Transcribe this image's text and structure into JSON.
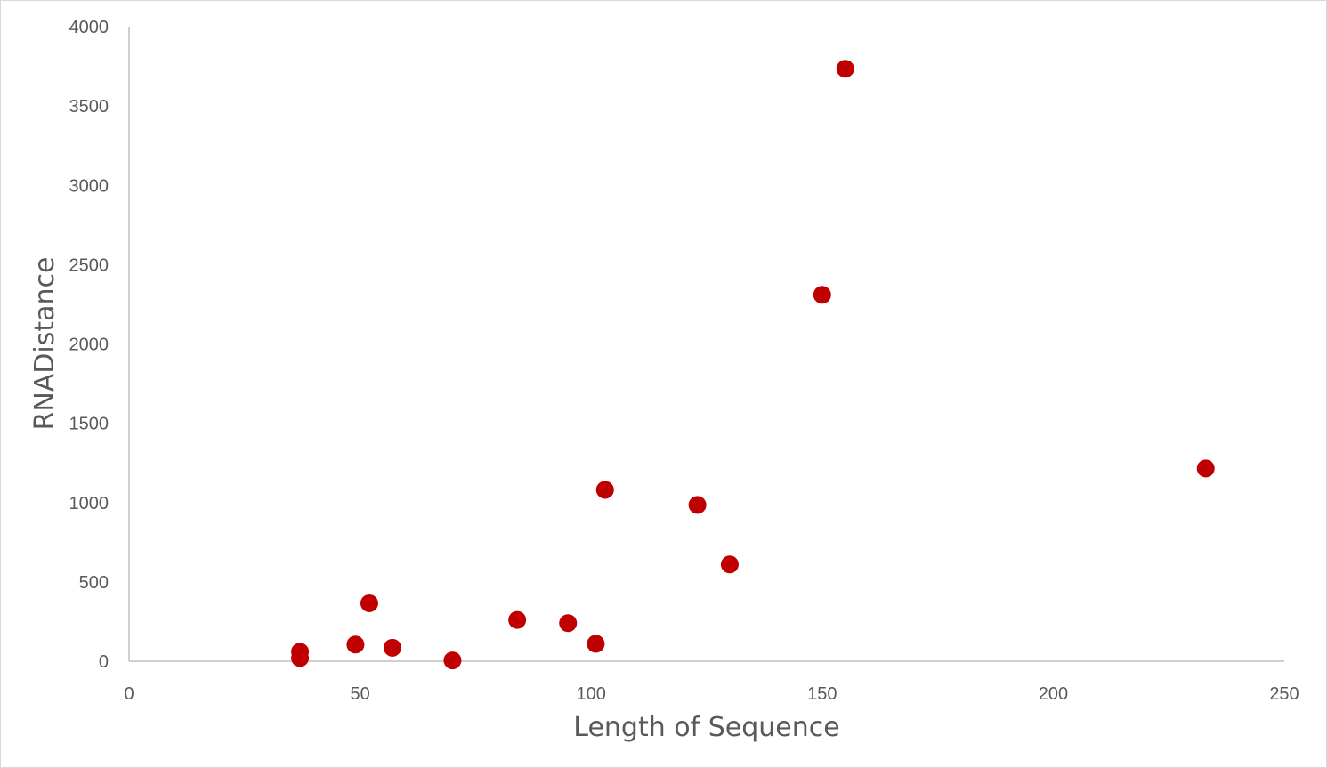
{
  "chart_data": {
    "type": "scatter",
    "title": "",
    "xlabel": "Length of Sequence",
    "ylabel": "RNADistance",
    "xlim": [
      0,
      250
    ],
    "ylim": [
      0,
      4000
    ],
    "xticks": [
      "0",
      "50",
      "100",
      "150",
      "200",
      "250"
    ],
    "yticks": [
      "0",
      "500",
      "1000",
      "1500",
      "2000",
      "2500",
      "3000",
      "3500",
      "4000"
    ],
    "grid": false,
    "legend": "none",
    "marker_color": "#C00000",
    "points": [
      {
        "x": 37,
        "y": 60
      },
      {
        "x": 37,
        "y": 20
      },
      {
        "x": 49,
        "y": 105
      },
      {
        "x": 52,
        "y": 365
      },
      {
        "x": 57,
        "y": 85
      },
      {
        "x": 70,
        "y": 5
      },
      {
        "x": 84,
        "y": 260
      },
      {
        "x": 95,
        "y": 240
      },
      {
        "x": 101,
        "y": 110
      },
      {
        "x": 103,
        "y": 1080
      },
      {
        "x": 123,
        "y": 985
      },
      {
        "x": 130,
        "y": 610
      },
      {
        "x": 150,
        "y": 2310
      },
      {
        "x": 155,
        "y": 3735
      },
      {
        "x": 233,
        "y": 1215
      }
    ]
  }
}
